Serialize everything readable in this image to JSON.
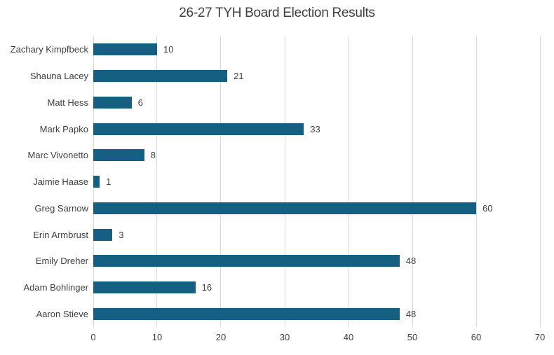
{
  "chart_data": {
    "type": "bar",
    "orientation": "horizontal",
    "title": "26-27 TYH Board Election Results",
    "categories": [
      "Zachary Kimpfbeck",
      "Shauna Lacey",
      "Matt Hess",
      "Mark Papko",
      "Marc Vivonetto",
      "Jaimie Haase",
      "Greg Sarnow",
      "Erin Armbrust",
      "Emily Dreher",
      "Adam Bohlinger",
      "Aaron Stieve"
    ],
    "values": [
      10,
      21,
      6,
      33,
      8,
      1,
      60,
      3,
      48,
      16,
      48
    ],
    "data_labels": [
      "10",
      "21",
      "6",
      "33",
      "8",
      "1",
      "60",
      "3",
      "48",
      "16",
      "48"
    ],
    "xlabel": "",
    "ylabel": "",
    "xlim": [
      0,
      70
    ],
    "xticks": [
      0,
      10,
      20,
      30,
      40,
      50,
      60,
      70
    ],
    "grid": "vertical",
    "legend": "none",
    "colors": {
      "bar": "#156082",
      "gridline": "#D9D9D9",
      "text": "#404040",
      "background": "#FFFFFF"
    }
  }
}
